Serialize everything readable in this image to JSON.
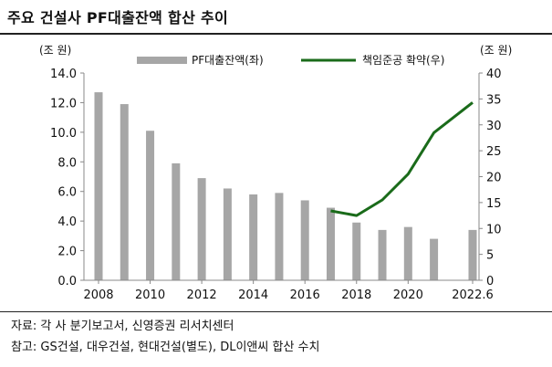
{
  "header": {
    "title": "주요 건설사 PF대출잔액 합산 추이"
  },
  "notes": {
    "source": "자료: 각 사 분기보고서, 신영증권 리서치센터",
    "reference": "참고: GS건설, 대우건설, 현대건설(별도), DL이앤씨 합산 수치"
  },
  "colors": {
    "bar": "#a6a6a6",
    "line": "#1a6b1a"
  },
  "chart_data": {
    "type": "bar+line",
    "title": "주요 건설사 PF대출잔액 합산 추이",
    "x_tick_labels": [
      "2008",
      "2010",
      "2012",
      "2014",
      "2016",
      "2018",
      "2020",
      "2022.6"
    ],
    "x_tick_positions": [
      2008,
      2010,
      2012,
      2014,
      2016,
      2018,
      2020,
      2022.5
    ],
    "y_left": {
      "unit": "(조 원)",
      "min": 0,
      "max": 14,
      "step": 2,
      "tick_labels": [
        "0.0",
        "2.0",
        "4.0",
        "6.0",
        "8.0",
        "10.0",
        "12.0",
        "14.0"
      ]
    },
    "y_right": {
      "unit": "(조 원)",
      "min": 0,
      "max": 40,
      "step": 5,
      "tick_labels": [
        "0",
        "5",
        "10",
        "15",
        "20",
        "25",
        "30",
        "35",
        "40"
      ]
    },
    "legend_position": "top",
    "grid": false,
    "series": [
      {
        "name": "PF대출잔액(좌)",
        "type": "bar",
        "axis": "left",
        "x": [
          2008,
          2009,
          2010,
          2011,
          2012,
          2013,
          2014,
          2015,
          2016,
          2017,
          2018,
          2019,
          2020,
          2021,
          2022.5
        ],
        "values": [
          12.7,
          11.9,
          10.1,
          7.9,
          6.9,
          6.2,
          5.8,
          5.9,
          5.4,
          4.9,
          3.9,
          3.4,
          3.6,
          2.8,
          3.4
        ]
      },
      {
        "name": "책임준공 확약(우)",
        "type": "line",
        "axis": "right",
        "x": [
          2017,
          2018,
          2019,
          2020,
          2021,
          2022.5
        ],
        "values": [
          13.4,
          12.5,
          15.5,
          20.5,
          28.5,
          34.3
        ]
      }
    ]
  }
}
